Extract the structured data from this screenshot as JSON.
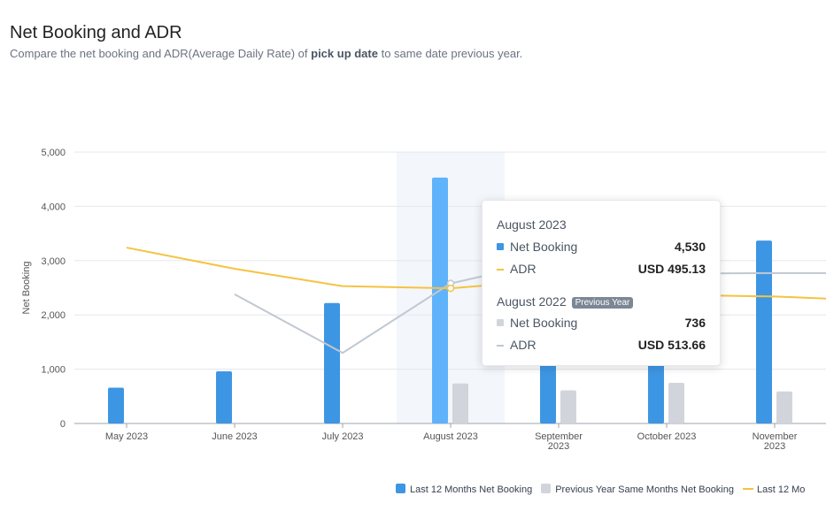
{
  "header": {
    "title": "Net Booking and ADR",
    "subtitle_before": "Compare the net booking and ADR(Average Daily Rate) of ",
    "subtitle_bold": "pick up date",
    "subtitle_after": " to same date previous year."
  },
  "colors": {
    "net_booking": "#3d96e3",
    "net_booking_highlight": "#5fb3fa",
    "prev_booking": "#d1d5db",
    "adr": "#f5c342",
    "prev_adr": "#c0c8d2",
    "highlight_band": "#f3f6fb",
    "grid": "#e5e7eb"
  },
  "chart_data": {
    "type": "bar",
    "ylabel": "Net Booking",
    "ylim": [
      0,
      5000
    ],
    "yticks": [
      "0",
      "1,000",
      "2,000",
      "3,000",
      "4,000",
      "5,000"
    ],
    "ytick_values": [
      0,
      1000,
      2000,
      3000,
      4000,
      5000
    ],
    "categories": [
      [
        "May 2023"
      ],
      [
        "June 2023"
      ],
      [
        "July 2023"
      ],
      [
        "August 2023"
      ],
      [
        "September",
        "2023"
      ],
      [
        "October 2023"
      ],
      [
        "November",
        "2023"
      ]
    ],
    "highlight_index": 3,
    "series": [
      {
        "name": "Last 12 Months Net Booking",
        "kind": "bar",
        "values": [
          660,
          960,
          2220,
          4530,
          3850,
          3960,
          3370
        ]
      },
      {
        "name": "Previous Year Same Months Net Booking",
        "kind": "bar",
        "values": [
          null,
          null,
          null,
          736,
          610,
          750,
          590
        ]
      },
      {
        "name": "Last 12 Mo",
        "kind": "line",
        "values": [
          3240,
          2850,
          2530,
          2490,
          2650,
          2370,
          2340
        ]
      },
      {
        "kind": "line",
        "values": [
          null,
          2380,
          1300,
          2580,
          3030,
          2760,
          2770
        ]
      }
    ],
    "adr_scale": {
      "usd_at_top": 1000
    },
    "tail": {
      "adr_y": 2300,
      "prev_adr_y": 2770
    }
  },
  "tooltip": {
    "current": {
      "title": "August 2023",
      "booking_label": "Net Booking",
      "booking_value": "4,530",
      "adr_label": "ADR",
      "adr_value": "USD 495.13"
    },
    "previous": {
      "title": "August 2022",
      "badge": "Previous Year",
      "booking_label": "Net Booking",
      "booking_value": "736",
      "adr_label": "ADR",
      "adr_value": "USD 513.66"
    }
  },
  "legend": {
    "items": [
      {
        "label": "Last 12 Months Net Booking",
        "type": "square"
      },
      {
        "label": "Previous Year Same Months Net Booking",
        "type": "square"
      },
      {
        "label": "Last 12 Mo",
        "type": "line"
      }
    ]
  }
}
